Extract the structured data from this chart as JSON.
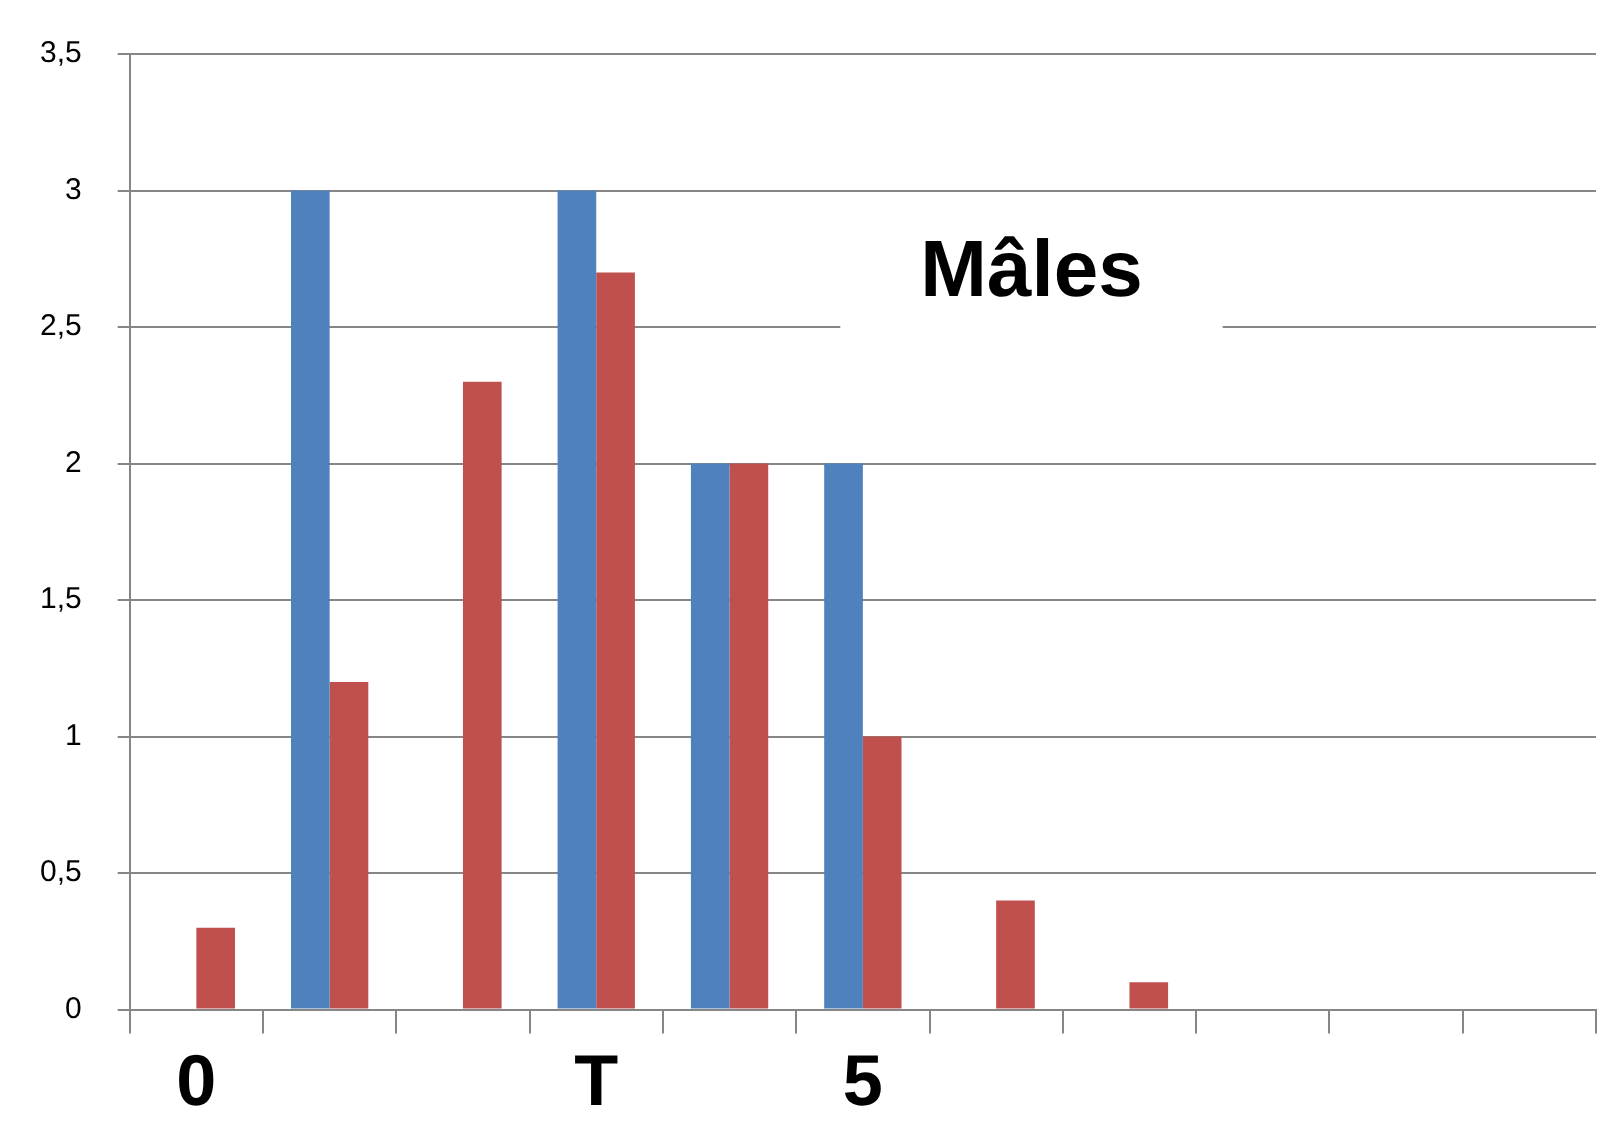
{
  "chart_data": {
    "type": "bar",
    "title": "Mâles",
    "categories": [
      "0",
      null,
      null,
      "T",
      null,
      "5",
      null,
      null,
      null,
      null,
      null
    ],
    "series": [
      {
        "color": "#4f81bd",
        "values": [
          0,
          3,
          0,
          3,
          2,
          2,
          0,
          0,
          0,
          0,
          0
        ]
      },
      {
        "color": "#c0504d",
        "values": [
          0.3,
          1.2,
          2.3,
          2.7,
          2,
          1,
          0.4,
          0.1,
          0,
          0,
          0
        ]
      }
    ],
    "ylim": [
      0,
      3.5
    ],
    "yticks": [
      0,
      {
        "value": 0.5,
        "label": "0,5"
      },
      1,
      {
        "value": 1.5,
        "label": "1,5"
      },
      2,
      {
        "value": 2.5,
        "label": "2,5"
      },
      3,
      {
        "value": 3.5,
        "label": "3,5"
      }
    ],
    "grid": "y",
    "legend": false
  }
}
